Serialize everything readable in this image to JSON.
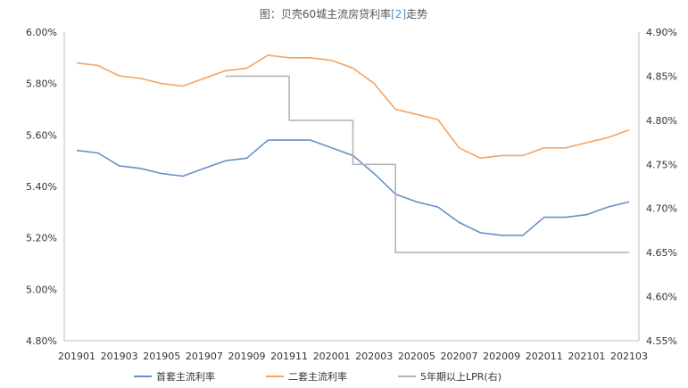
{
  "chart_data": {
    "type": "line",
    "title": {
      "prefix": "图：贝壳60城主流房贷利率",
      "ref": "[2]",
      "suffix": "走势"
    },
    "x": [
      "201901",
      "201902",
      "201903",
      "201904",
      "201905",
      "201906",
      "201907",
      "201908",
      "201909",
      "201910",
      "201911",
      "201912",
      "202001",
      "202002",
      "202003",
      "202004",
      "202005",
      "202006",
      "202007",
      "202008",
      "202009",
      "202010",
      "202011",
      "202012",
      "202101",
      "202102",
      "202103"
    ],
    "x_tick_labels": [
      "201901",
      "201903",
      "201905",
      "201907",
      "201909",
      "201911",
      "202001",
      "202003",
      "202005",
      "202007",
      "202009",
      "202011",
      "202101",
      "202103"
    ],
    "y_left": {
      "range": [
        4.8,
        6.0
      ],
      "ticks": [
        "4.80%",
        "5.00%",
        "5.20%",
        "5.40%",
        "5.60%",
        "5.80%",
        "6.00%"
      ]
    },
    "y_right": {
      "range": [
        4.55,
        4.9
      ],
      "ticks": [
        "4.55%",
        "4.60%",
        "4.65%",
        "4.70%",
        "4.75%",
        "4.80%",
        "4.85%",
        "4.90%"
      ]
    },
    "grid": false,
    "legend_position": "bottom",
    "series": [
      {
        "name": "首套主流利率",
        "axis": "left",
        "color": "#6a8fc8",
        "values": [
          5.54,
          5.53,
          5.48,
          5.47,
          5.45,
          5.44,
          5.47,
          5.5,
          5.51,
          5.58,
          5.58,
          5.58,
          5.55,
          5.52,
          5.45,
          5.37,
          5.34,
          5.32,
          5.26,
          5.22,
          5.21,
          5.21,
          5.28,
          5.28,
          5.29,
          5.32,
          5.34
        ]
      },
      {
        "name": "二套主流利率",
        "axis": "left",
        "color": "#f0a466",
        "values": [
          5.88,
          5.87,
          5.83,
          5.82,
          5.8,
          5.79,
          5.82,
          5.85,
          5.86,
          5.91,
          5.9,
          5.9,
          5.89,
          5.86,
          5.8,
          5.7,
          5.68,
          5.66,
          5.55,
          5.51,
          5.52,
          5.52,
          5.55,
          5.55,
          5.57,
          5.59,
          5.62
        ]
      },
      {
        "name": "5年期以上LPR(右)",
        "axis": "right",
        "color": "#b5b5b5",
        "values": [
          null,
          null,
          null,
          null,
          null,
          null,
          null,
          4.85,
          4.85,
          4.85,
          4.8,
          4.8,
          4.8,
          4.75,
          4.75,
          4.65,
          4.65,
          4.65,
          4.65,
          4.65,
          4.65,
          4.65,
          4.65,
          4.65,
          4.65,
          4.65,
          4.65
        ]
      }
    ]
  }
}
